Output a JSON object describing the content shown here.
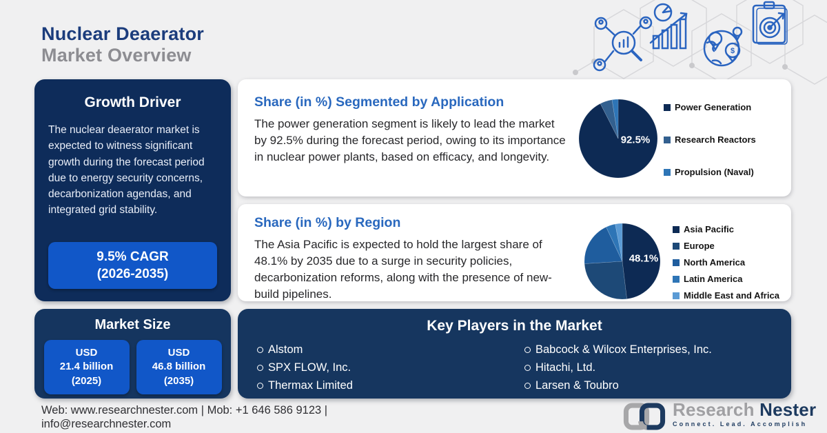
{
  "header": {
    "title_line1": "Nuclear Deaerator",
    "title_line2": "Market Overview"
  },
  "growth_driver": {
    "title": "Growth Driver",
    "body": "The nuclear deaerator market is expected to witness significant growth during the forecast period due to energy security concerns, decarbonization agendas, and integrated grid stability.",
    "cagr_line1": "9.5% CAGR",
    "cagr_line2": "(2026-2035)"
  },
  "application_card": {
    "title": "Share (in %) Segmented by Application",
    "body": "The power generation segment is likely to lead the market by 92.5% during the forecast period, owing to its importance in nuclear power plants, based on efficacy, and longevity."
  },
  "region_card": {
    "title": "Share (in %) by Region",
    "body": "The Asia Pacific is expected to hold the largest share of 48.1% by 2035 due to a surge in security policies, decarbonization reforms, along with the presence of new-build pipelines."
  },
  "market_size": {
    "title": "Market Size",
    "boxes": [
      {
        "line1": "USD",
        "line2": "21.4 billion",
        "line3": "(2025)"
      },
      {
        "line1": "USD",
        "line2": "46.8 billion",
        "line3": "(2035)"
      }
    ]
  },
  "key_players": {
    "title": "Key Players in the Market",
    "column1": [
      "Alstom",
      "SPX FLOW, Inc.",
      "Thermax Limited"
    ],
    "column2": [
      "Babcock & Wilcox Enterprises, Inc.",
      "Hitachi, Ltd.",
      "Larsen & Toubro"
    ]
  },
  "footer": {
    "contact_line1": "Web: www.researchnester.com | Mob: +1 646 586 9123 |",
    "contact_line2": "info@researchnester.com"
  },
  "logo": {
    "name_part1": "Research",
    "name_part2": "Nester",
    "tagline": "Connect. Lead. Accomplish"
  },
  "colors": {
    "panel_navy": "#0e2c5a",
    "accent_blue": "#1157c8",
    "heading_blue": "#2968be",
    "title_navy": "#1b3c7c",
    "title_gray": "#8d8d92"
  },
  "chart_data": [
    {
      "type": "pie",
      "title": "Share (in %) Segmented by Application",
      "labels": [
        "Power Generation",
        "Research Reactors",
        "Propulsion (Naval)"
      ],
      "values": [
        92.5,
        5.0,
        2.5
      ],
      "colors": [
        "#0d2a54",
        "#33608f",
        "#2e75b6"
      ],
      "label_text": "92.5%",
      "label_offset": [
        25,
        2
      ],
      "legend_position": "right",
      "note": "only 92.5% labeled on chart; minor slice values estimated"
    },
    {
      "type": "pie",
      "title": "Share (in %) by Region",
      "labels": [
        "Asia Pacific",
        "Europe",
        "North America",
        "Latin America",
        "Middle East and Africa"
      ],
      "values": [
        48.1,
        25.9,
        19.0,
        4.0,
        3.0
      ],
      "colors": [
        "#0d2a54",
        "#1d4977",
        "#1f5d9e",
        "#2e75b6",
        "#5b9bd5"
      ],
      "label_text": "48.1%",
      "label_offset": [
        31,
        -4
      ],
      "legend_position": "right",
      "note": "only 48.1% labeled on chart; other slice values estimated"
    }
  ]
}
